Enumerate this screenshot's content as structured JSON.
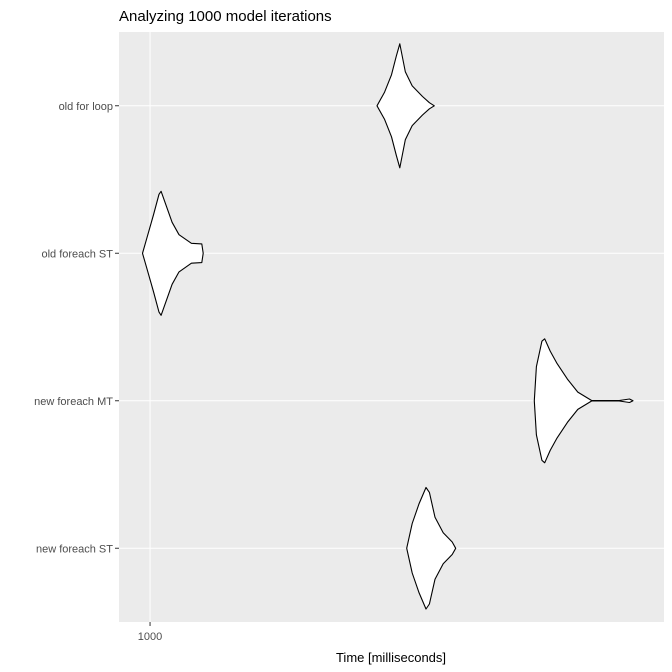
{
  "chart_data": {
    "type": "violin",
    "title": "Analyzing 1000 model iterations",
    "xlabel": "Time [milliseconds]",
    "ylabel": "",
    "x_ticks": [
      1000
    ],
    "xlim": [
      955,
      1745
    ],
    "categories": [
      "new foreach ST",
      "new foreach MT",
      "old foreach ST",
      "old for loop"
    ],
    "series": [
      {
        "category": "old for loop",
        "profile": [
          [
            1329,
            0
          ],
          [
            1340,
            0.22
          ],
          [
            1350,
            0.5
          ],
          [
            1357,
            0.8
          ],
          [
            1362,
            1.0
          ],
          [
            1370,
            0.55
          ],
          [
            1380,
            0.32
          ],
          [
            1395,
            0.15
          ],
          [
            1405,
            0.05
          ],
          [
            1412,
            0
          ]
        ]
      },
      {
        "category": "old foreach ST",
        "profile": [
          [
            989,
            0
          ],
          [
            995,
            0.23
          ],
          [
            1005,
            0.62
          ],
          [
            1013,
            0.95
          ],
          [
            1016,
            1.0
          ],
          [
            1024,
            0.75
          ],
          [
            1032,
            0.5
          ],
          [
            1042,
            0.3
          ],
          [
            1060,
            0.16
          ],
          [
            1075,
            0.15
          ],
          [
            1077,
            0
          ]
        ]
      },
      {
        "category": "new foreach MT",
        "profile": [
          [
            1557,
            0
          ],
          [
            1560,
            0.55
          ],
          [
            1568,
            0.96
          ],
          [
            1572,
            1.0
          ],
          [
            1580,
            0.8
          ],
          [
            1590,
            0.6
          ],
          [
            1605,
            0.35
          ],
          [
            1620,
            0.14
          ],
          [
            1640,
            0.004
          ],
          [
            1680,
            0.004
          ],
          [
            1695,
            0.028
          ],
          [
            1700,
            0
          ]
        ]
      },
      {
        "category": "new foreach ST",
        "profile": [
          [
            1372,
            0
          ],
          [
            1380,
            0.4
          ],
          [
            1390,
            0.72
          ],
          [
            1400,
            0.98
          ],
          [
            1405,
            0.9
          ],
          [
            1413,
            0.5
          ],
          [
            1425,
            0.25
          ],
          [
            1438,
            0.1
          ],
          [
            1443,
            0
          ]
        ]
      }
    ],
    "grid": true,
    "legend": "none"
  }
}
